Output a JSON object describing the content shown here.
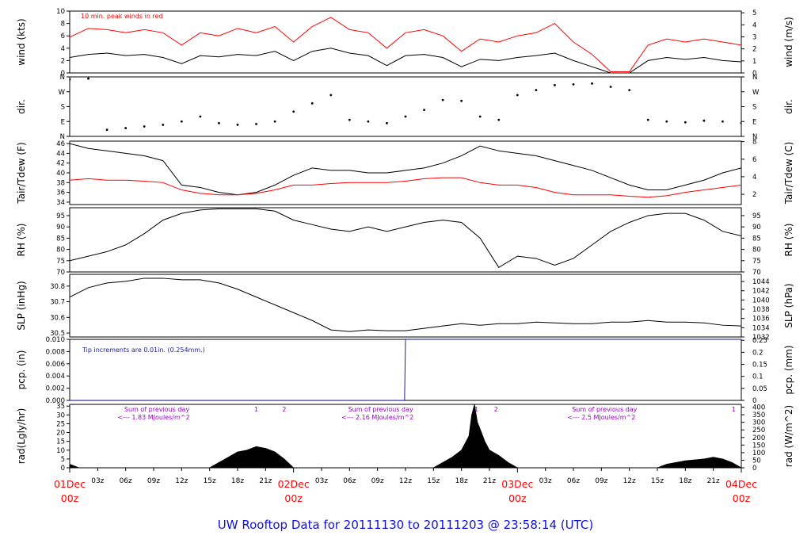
{
  "title": "UW Rooftop Data for 20111130  to  20111203 @ 23:58:14  (UTC)",
  "colors": {
    "black": "#000000",
    "red": "#ff0000",
    "blue": "#1a1aa8",
    "purple": "#9900cc"
  },
  "chart_data": [
    {
      "type": "line",
      "name": "wind",
      "ylabel_left": "wind (kts)",
      "ylabel_right": "wind (m/s)",
      "ylim_left": [
        0,
        10
      ],
      "yticks_left": [
        0,
        2,
        4,
        6,
        8,
        10
      ],
      "ylim_right": [
        0,
        5.14
      ],
      "yticks_right": [
        0,
        1,
        2,
        3,
        4,
        5
      ],
      "annotation": "10 min. peak winds in red",
      "series": [
        {
          "color": "#000000",
          "x": [
            0,
            2,
            4,
            6,
            8,
            10,
            12,
            14,
            16,
            18,
            20,
            22,
            24,
            26,
            28,
            30,
            32,
            34,
            36,
            38,
            40,
            42,
            44,
            46,
            48,
            50,
            52,
            54,
            56,
            58,
            60,
            62,
            64,
            66,
            68,
            70,
            72
          ],
          "values": [
            2.5,
            3.0,
            3.2,
            2.8,
            3.0,
            2.5,
            1.5,
            2.8,
            2.6,
            3.0,
            2.8,
            3.5,
            2.0,
            3.5,
            4.0,
            3.2,
            2.8,
            1.2,
            2.8,
            3.0,
            2.5,
            1.0,
            2.2,
            2.0,
            2.5,
            2.8,
            3.2,
            2.0,
            1.0,
            0.0,
            0.0,
            2.0,
            2.5,
            2.2,
            2.5,
            2.0,
            1.8
          ]
        },
        {
          "color": "#ff0000",
          "x": [
            0,
            2,
            4,
            6,
            8,
            10,
            12,
            14,
            16,
            18,
            20,
            22,
            24,
            26,
            28,
            30,
            32,
            34,
            36,
            38,
            40,
            42,
            44,
            46,
            48,
            50,
            52,
            54,
            56,
            58,
            60,
            62,
            64,
            66,
            68,
            70,
            72
          ],
          "values": [
            5.8,
            7.2,
            7.0,
            6.5,
            7.0,
            6.5,
            4.5,
            6.5,
            6.0,
            7.2,
            6.5,
            7.5,
            5.0,
            7.5,
            9.0,
            7.0,
            6.5,
            4.0,
            6.5,
            7.0,
            6.0,
            3.5,
            5.5,
            5.0,
            6.0,
            6.5,
            8.0,
            5.0,
            3.0,
            0.2,
            0.2,
            4.5,
            5.5,
            5.0,
            5.5,
            5.0,
            4.5
          ]
        }
      ]
    },
    {
      "type": "scatter",
      "name": "dir",
      "ylabel_left": "dir.",
      "ylabel_right": "dir.",
      "ylim_left": [
        0,
        360
      ],
      "yticks_left": [
        0,
        90,
        180,
        270,
        360
      ],
      "ytick_labels": [
        "N",
        "E",
        "S",
        "W",
        "N"
      ],
      "series": [
        {
          "color": "#000000",
          "x": [
            0,
            2,
            4,
            6,
            8,
            10,
            12,
            14,
            16,
            18,
            20,
            22,
            24,
            26,
            28,
            30,
            32,
            34,
            36,
            38,
            40,
            42,
            44,
            46,
            48,
            50,
            52,
            54,
            56,
            58,
            60,
            62,
            64,
            66,
            68,
            70,
            72
          ],
          "values": [
            345,
            350,
            40,
            50,
            60,
            70,
            90,
            120,
            80,
            70,
            75,
            90,
            150,
            200,
            250,
            100,
            90,
            80,
            120,
            160,
            220,
            215,
            120,
            100,
            250,
            280,
            310,
            315,
            320,
            300,
            280,
            100,
            90,
            85,
            95,
            90,
            80
          ]
        }
      ]
    },
    {
      "type": "line",
      "name": "temp",
      "ylabel_left": "Tair/Tdew (F)",
      "ylabel_right": "Tair/Tdew (C)",
      "ylim_left": [
        33.5,
        46.5
      ],
      "yticks_left": [
        34,
        36,
        38,
        40,
        42,
        44,
        46
      ],
      "yticks_right_C": [
        2,
        4,
        6,
        8
      ],
      "series": [
        {
          "color": "#000000",
          "x": [
            0,
            2,
            4,
            6,
            8,
            10,
            12,
            14,
            16,
            18,
            20,
            22,
            24,
            26,
            28,
            30,
            32,
            34,
            36,
            38,
            40,
            42,
            44,
            46,
            48,
            50,
            52,
            54,
            56,
            58,
            60,
            62,
            64,
            66,
            68,
            70,
            72
          ],
          "values": [
            46,
            45,
            44.5,
            44,
            43.5,
            42.5,
            37.5,
            37,
            36,
            35.5,
            36,
            37.5,
            39.5,
            41,
            40.5,
            40.5,
            40,
            40,
            40.5,
            41,
            42,
            43.5,
            45.5,
            44.5,
            44,
            43.5,
            42.5,
            41.5,
            40.5,
            39,
            37.5,
            36.5,
            36.5,
            37.5,
            38.5,
            40,
            41
          ]
        },
        {
          "color": "#ff0000",
          "x": [
            0,
            2,
            4,
            6,
            8,
            10,
            12,
            14,
            16,
            18,
            20,
            22,
            24,
            26,
            28,
            30,
            32,
            34,
            36,
            38,
            40,
            42,
            44,
            46,
            48,
            50,
            52,
            54,
            56,
            58,
            60,
            62,
            64,
            66,
            68,
            70,
            72
          ],
          "values": [
            38.5,
            38.8,
            38.5,
            38.5,
            38.3,
            38,
            36.5,
            35.8,
            35.5,
            35.5,
            35.8,
            36.5,
            37.5,
            37.5,
            37.8,
            38,
            38,
            38,
            38.3,
            38.8,
            39,
            39,
            38,
            37.5,
            37.5,
            37,
            36,
            35.5,
            35.5,
            35.5,
            35.2,
            35,
            35.3,
            36,
            36.5,
            37,
            37.5
          ]
        }
      ]
    },
    {
      "type": "line",
      "name": "rh",
      "ylabel_left": "RH (%)",
      "ylabel_right": "RH (%)",
      "ylim_left": [
        70,
        98.5
      ],
      "yticks_left": [
        70,
        75,
        80,
        85,
        90,
        95
      ],
      "series": [
        {
          "color": "#000000",
          "x": [
            0,
            2,
            4,
            6,
            8,
            10,
            12,
            14,
            16,
            18,
            20,
            22,
            24,
            26,
            28,
            30,
            32,
            34,
            36,
            38,
            40,
            42,
            44,
            46,
            48,
            50,
            52,
            54,
            56,
            58,
            60,
            62,
            64,
            66,
            68,
            70,
            72
          ],
          "values": [
            75,
            77,
            79,
            82,
            87,
            93,
            96,
            97.5,
            98,
            98,
            98,
            97,
            93,
            91,
            89,
            88,
            90,
            88,
            90,
            92,
            93,
            92,
            85,
            72,
            77,
            76,
            73,
            76,
            82,
            88,
            92,
            95,
            96,
            96,
            93,
            88,
            86
          ]
        }
      ]
    },
    {
      "type": "line",
      "name": "slp",
      "ylabel_left": "SLP (inHg)",
      "ylabel_right": "SLP (hPa)",
      "ylim_left": [
        30.475,
        30.875
      ],
      "yticks_left": [
        30.5,
        30.6,
        30.7,
        30.8
      ],
      "yticks_right_hPa": [
        1032,
        1034,
        1036,
        1038,
        1040,
        1042,
        1044
      ],
      "series": [
        {
          "color": "#000000",
          "x": [
            0,
            2,
            4,
            6,
            8,
            10,
            12,
            14,
            16,
            18,
            20,
            22,
            24,
            26,
            28,
            30,
            32,
            34,
            36,
            38,
            40,
            42,
            44,
            46,
            48,
            50,
            52,
            54,
            56,
            58,
            60,
            62,
            64,
            66,
            68,
            70,
            72
          ],
          "values": [
            30.73,
            30.79,
            30.82,
            30.83,
            30.85,
            30.85,
            30.84,
            30.84,
            30.82,
            30.78,
            30.73,
            30.68,
            30.63,
            30.58,
            30.52,
            30.51,
            30.52,
            30.515,
            30.515,
            30.53,
            30.545,
            30.56,
            30.55,
            30.56,
            30.56,
            30.57,
            30.565,
            30.56,
            30.56,
            30.57,
            30.57,
            30.58,
            30.57,
            30.57,
            30.565,
            30.55,
            30.545
          ]
        }
      ]
    },
    {
      "type": "line",
      "name": "pcp",
      "ylabel_left": "pcp. (in)",
      "ylabel_right": "pcp. (mm)",
      "ylim_left": [
        0,
        0.01
      ],
      "yticks_left_labels": [
        "0.000",
        "0.002",
        "0.004",
        "0.006",
        "0.008",
        "0.010"
      ],
      "yticks_right_labels": [
        "0",
        "0.05",
        "0.1",
        "0.15",
        "0.2",
        "0.25"
      ],
      "annotation": "Tip increments are 0.01in. (0.254mm.)",
      "series": [
        {
          "color": "#1a1aa8",
          "x": [
            0,
            35.9,
            36,
            72
          ],
          "values": [
            0,
            0,
            0.01,
            0.01
          ]
        }
      ]
    },
    {
      "type": "area",
      "name": "rad",
      "ylabel_left": "rad(Lgly/hr)",
      "ylabel_right": "rad (W/m^2)",
      "ylim_left": [
        0,
        36
      ],
      "yticks_left": [
        0,
        5,
        10,
        15,
        20,
        25,
        30,
        35
      ],
      "yticks_right_W": [
        0,
        50,
        100,
        150,
        200,
        250,
        300,
        350,
        400
      ],
      "annotations": [
        {
          "text": "Sum of previous day",
          "x": 9
        },
        {
          "text": "<--- 1.83 MJoules/m^2",
          "x": 9
        },
        {
          "text": "Sum of previous day",
          "x": 33
        },
        {
          "text": "<--- 2.16 MJoules/m^2",
          "x": 33
        },
        {
          "text": "Sum of previous day",
          "x": 57
        },
        {
          "text": "<--- 2.5 MJoules/m^2",
          "x": 57
        }
      ],
      "marks": [
        {
          "text": "1",
          "x": 20
        },
        {
          "text": "2",
          "x": 23
        },
        {
          "text": "1",
          "x": 43.6
        },
        {
          "text": "2",
          "x": 45.7
        },
        {
          "text": "1",
          "x": 71.2
        }
      ],
      "series": [
        {
          "color": "#000000",
          "x": [
            0,
            0.5,
            1,
            15,
            16,
            17,
            18,
            19,
            20,
            21,
            22,
            23,
            24,
            39,
            40,
            41,
            42,
            42.8,
            43.1,
            43.4,
            43.7,
            44,
            44.5,
            45,
            46,
            47,
            48,
            63,
            64,
            66,
            68,
            69,
            70,
            71,
            72
          ],
          "values": [
            2,
            1,
            0,
            0,
            3,
            6,
            9,
            10,
            12,
            11,
            9,
            5,
            0,
            0,
            3,
            6,
            10,
            18,
            30,
            36,
            26,
            22,
            15,
            10,
            7,
            3,
            0,
            0,
            2,
            4,
            5,
            6,
            5,
            3,
            0
          ]
        }
      ]
    }
  ],
  "x_axis": {
    "hours": [
      3,
      6,
      9,
      12,
      15,
      18,
      21,
      27,
      30,
      33,
      36,
      39,
      42,
      45,
      51,
      54,
      57,
      60,
      63,
      66,
      69
    ],
    "hour_labels": [
      "03z",
      "06z",
      "09z",
      "12z",
      "15z",
      "18z",
      "21z",
      "03z",
      "06z",
      "09z",
      "12z",
      "15z",
      "18z",
      "21z",
      "03z",
      "06z",
      "09z",
      "12z",
      "15z",
      "18z",
      "21z"
    ],
    "day_positions": [
      0,
      24,
      48,
      72
    ],
    "day_labels": [
      "01Dec",
      "02Dec",
      "03Dec",
      "04Dec"
    ],
    "day_sub": "00z"
  }
}
